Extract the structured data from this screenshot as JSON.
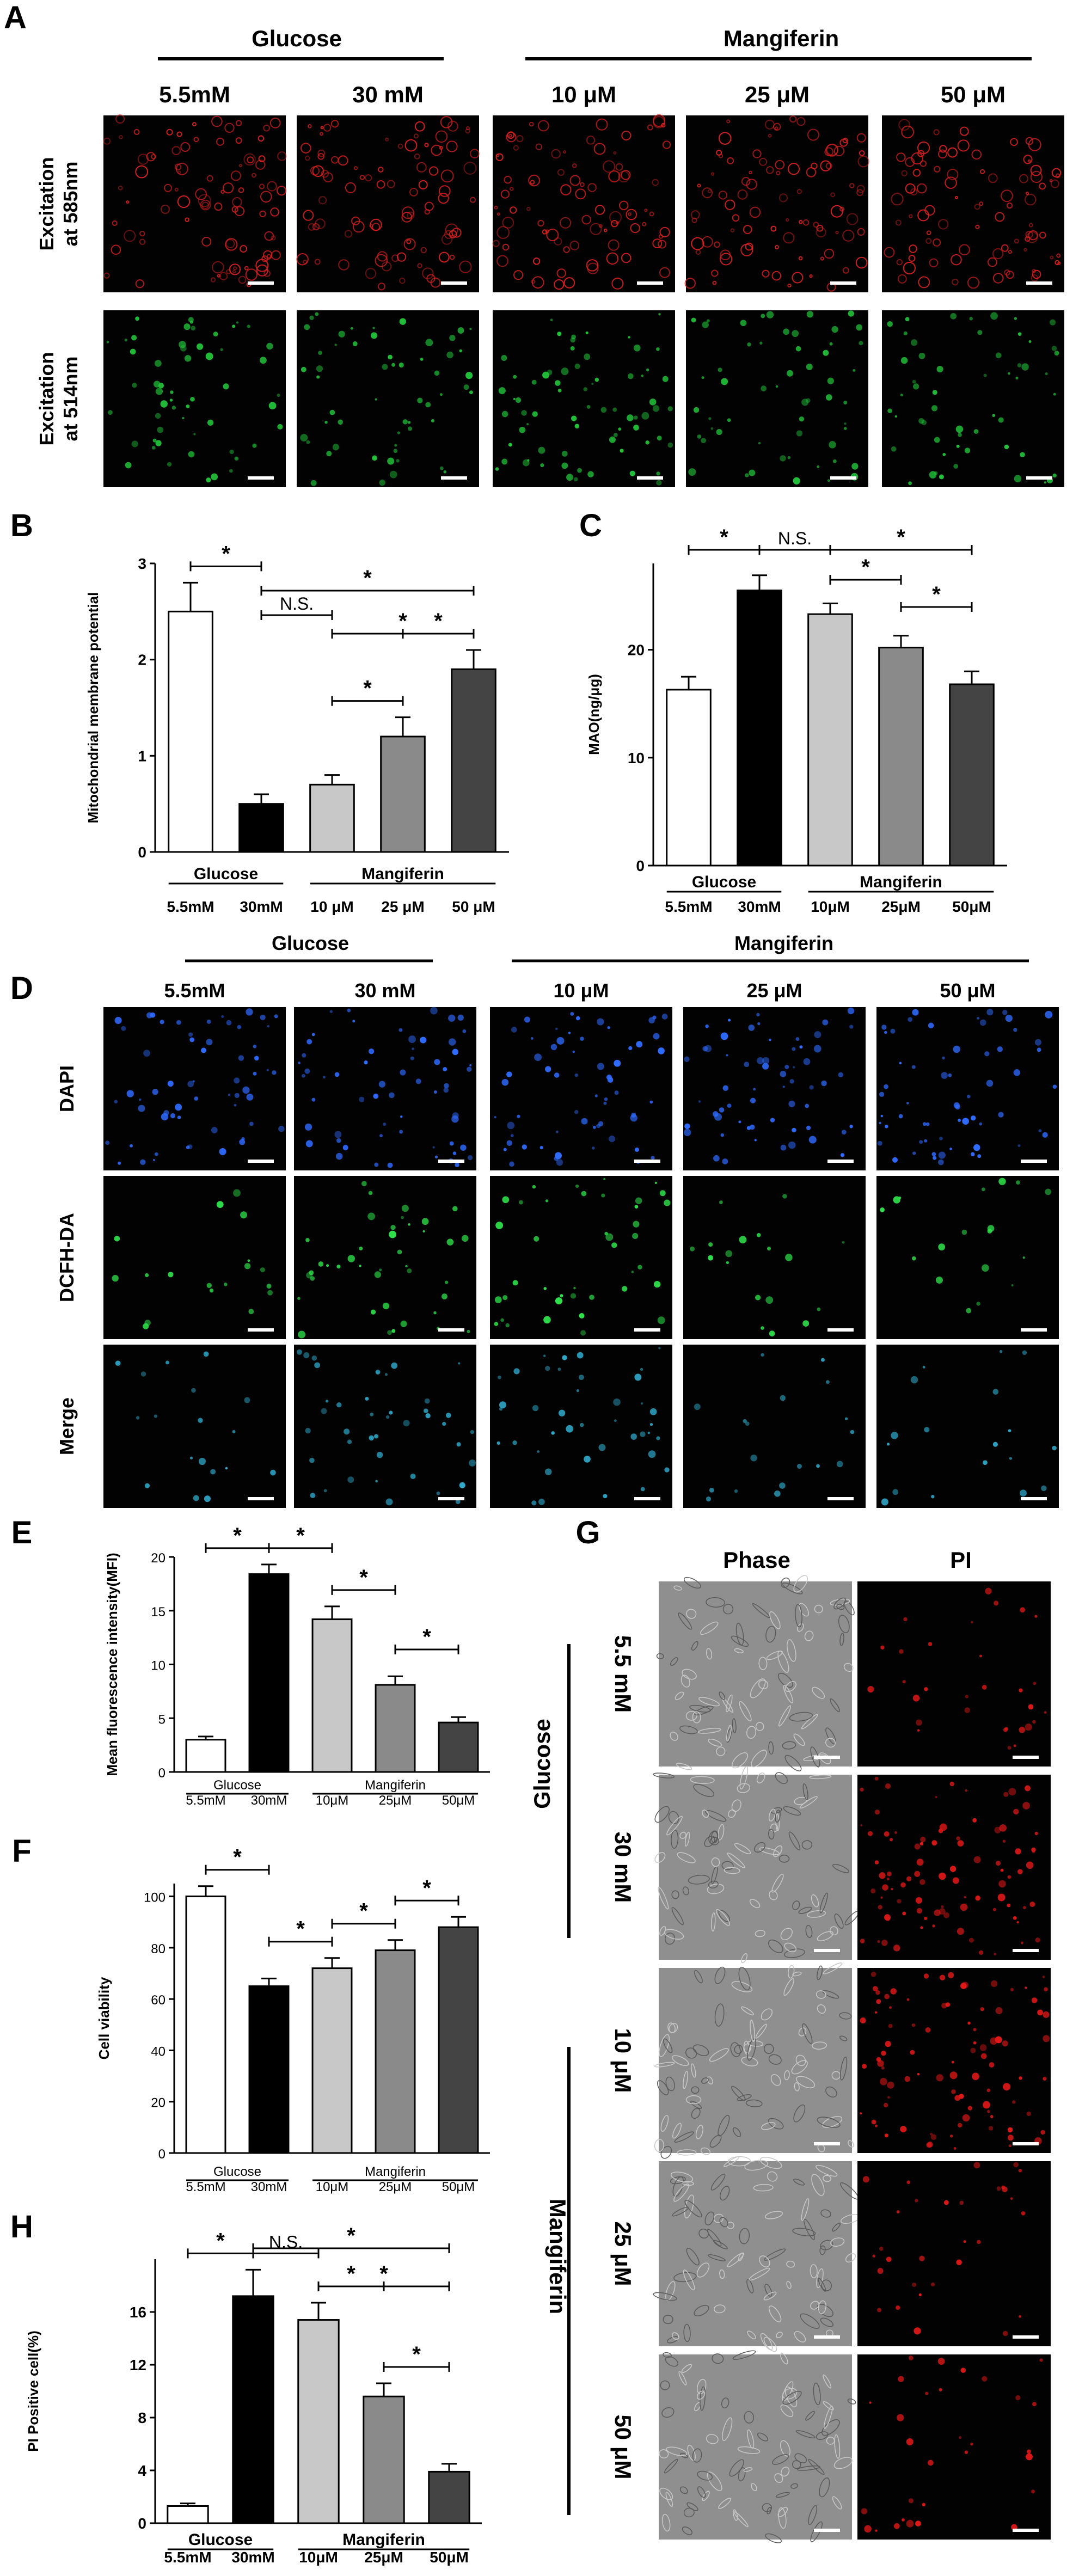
{
  "panels": {
    "A": {
      "letter": "A",
      "group_headers": [
        "Glucose",
        "Mangiferin"
      ],
      "columns": [
        "5.5mM",
        "30 mM",
        "10 μM",
        "25 μM",
        "50 μM"
      ],
      "rows": [
        "Excitation at 585nm",
        "Excitation at 514nm"
      ],
      "row_colors": [
        "#d42020",
        "#22c33a"
      ]
    },
    "D": {
      "letter": "D",
      "group_headers": [
        "Glucose",
        "Mangiferin"
      ],
      "columns": [
        "5.5mM",
        "30 mM",
        "10 μM",
        "25 μM",
        "50 μM"
      ],
      "rows": [
        "DAPI",
        "DCFH-DA",
        "Merge"
      ],
      "row_colors": [
        "#2f6bff",
        "#2ee04a",
        "#2fa8c9"
      ]
    },
    "G": {
      "letter": "G",
      "columns": [
        "Phase",
        "PI"
      ],
      "group_headers": [
        "Glucose",
        "Mangiferin"
      ],
      "rows": [
        "5.5 mM",
        "30 mM",
        "10 μM",
        "25 μM",
        "50 μM"
      ],
      "colors": {
        "phase": "#9c9c9c",
        "pi": "#e01818"
      }
    }
  },
  "bar_colors": [
    "#ffffff",
    "#000000",
    "#c8c8c8",
    "#8a8a8a",
    "#444444"
  ],
  "chart_data": [
    {
      "panel": "B",
      "type": "bar",
      "ylabel": "Mitochondrial membrane potential",
      "ylim": [
        0,
        3
      ],
      "yticks": [
        0,
        1,
        2,
        3
      ],
      "categories": [
        "5.5mM",
        "30mM",
        "10 μM",
        "25 μM",
        "50 μM"
      ],
      "groups": [
        "Glucose",
        "Mangiferin"
      ],
      "values": [
        2.5,
        0.5,
        0.7,
        1.2,
        1.9
      ],
      "errors": [
        0.3,
        0.1,
        0.1,
        0.2,
        0.2
      ],
      "annotations": [
        {
          "from": 0,
          "to": 1,
          "label": "*"
        },
        {
          "from": 1,
          "to": 4,
          "label": "*"
        },
        {
          "from": 1,
          "to": 2,
          "label": "N.S."
        },
        {
          "from": 2,
          "to": 4,
          "label": "*"
        },
        {
          "from": 2,
          "to": 3,
          "label": "*"
        },
        {
          "from": 3,
          "to": 4,
          "label": "*"
        }
      ]
    },
    {
      "panel": "C",
      "type": "bar",
      "ylabel": "MAO(ng/μg)",
      "ylim": [
        0,
        28
      ],
      "yticks": [
        0,
        10,
        20
      ],
      "categories": [
        "5.5mM",
        "30mM",
        "10μM",
        "25μM",
        "50μM"
      ],
      "groups": [
        "Glucose",
        "Mangiferin"
      ],
      "values": [
        16.3,
        25.5,
        23.3,
        20.2,
        16.8
      ],
      "errors": [
        1.2,
        1.4,
        1.0,
        1.1,
        1.2
      ],
      "annotations": [
        {
          "from": 0,
          "to": 1,
          "label": "*"
        },
        {
          "from": 1,
          "to": 2,
          "label": "N.S."
        },
        {
          "from": 2,
          "to": 4,
          "label": "*"
        },
        {
          "from": 2,
          "to": 3,
          "label": "*"
        },
        {
          "from": 3,
          "to": 4,
          "label": "*"
        }
      ]
    },
    {
      "panel": "E",
      "type": "bar",
      "ylabel": "Mean fluorescence intensity(MFI)",
      "ylim": [
        0,
        20
      ],
      "yticks": [
        0,
        5,
        10,
        15,
        20
      ],
      "categories": [
        "5.5mM",
        "30mM",
        "10μM",
        "25μM",
        "50μM"
      ],
      "groups": [
        "Glucose",
        "Mangiferin"
      ],
      "values": [
        3.0,
        18.4,
        14.2,
        8.1,
        4.6
      ],
      "errors": [
        0.3,
        0.9,
        1.2,
        0.8,
        0.5
      ],
      "annotations": [
        {
          "from": 0,
          "to": 1,
          "label": "*"
        },
        {
          "from": 1,
          "to": 2,
          "label": "*"
        },
        {
          "from": 2,
          "to": 3,
          "label": "*"
        },
        {
          "from": 3,
          "to": 4,
          "label": "*"
        }
      ]
    },
    {
      "panel": "F",
      "type": "bar",
      "ylabel": "Cell viability",
      "ylim": [
        0,
        105
      ],
      "yticks": [
        0,
        20,
        40,
        60,
        80,
        100
      ],
      "categories": [
        "5.5mM",
        "30mM",
        "10μM",
        "25μM",
        "50μM"
      ],
      "groups": [
        "Glucose",
        "Mangiferin"
      ],
      "values": [
        100,
        65,
        72,
        79,
        88
      ],
      "errors": [
        4,
        3,
        4,
        4,
        4
      ],
      "annotations": [
        {
          "from": 0,
          "to": 1,
          "label": "*"
        },
        {
          "from": 1,
          "to": 2,
          "label": "*"
        },
        {
          "from": 2,
          "to": 3,
          "label": "*"
        },
        {
          "from": 3,
          "to": 4,
          "label": "*"
        }
      ]
    },
    {
      "panel": "H",
      "type": "bar",
      "ylabel": "PI Positive cell(%)",
      "ylim": [
        0,
        20
      ],
      "yticks": [
        0,
        4,
        8,
        12,
        16
      ],
      "categories": [
        "5.5mM",
        "30mM",
        "10μM",
        "25μM",
        "50μM"
      ],
      "groups": [
        "Glucose",
        "Mangiferin"
      ],
      "values": [
        1.3,
        17.2,
        15.4,
        9.6,
        3.9
      ],
      "errors": [
        0.2,
        2.0,
        1.3,
        1.0,
        0.6
      ],
      "annotations": [
        {
          "from": 0,
          "to": 1,
          "label": "*"
        },
        {
          "from": 1,
          "to": 2,
          "label": "N.S."
        },
        {
          "from": 1,
          "to": 4,
          "label": "*"
        },
        {
          "from": 2,
          "to": 4,
          "label": "*"
        },
        {
          "from": 2,
          "to": 3,
          "label": "*"
        },
        {
          "from": 3,
          "to": 4,
          "label": "*"
        }
      ]
    }
  ]
}
